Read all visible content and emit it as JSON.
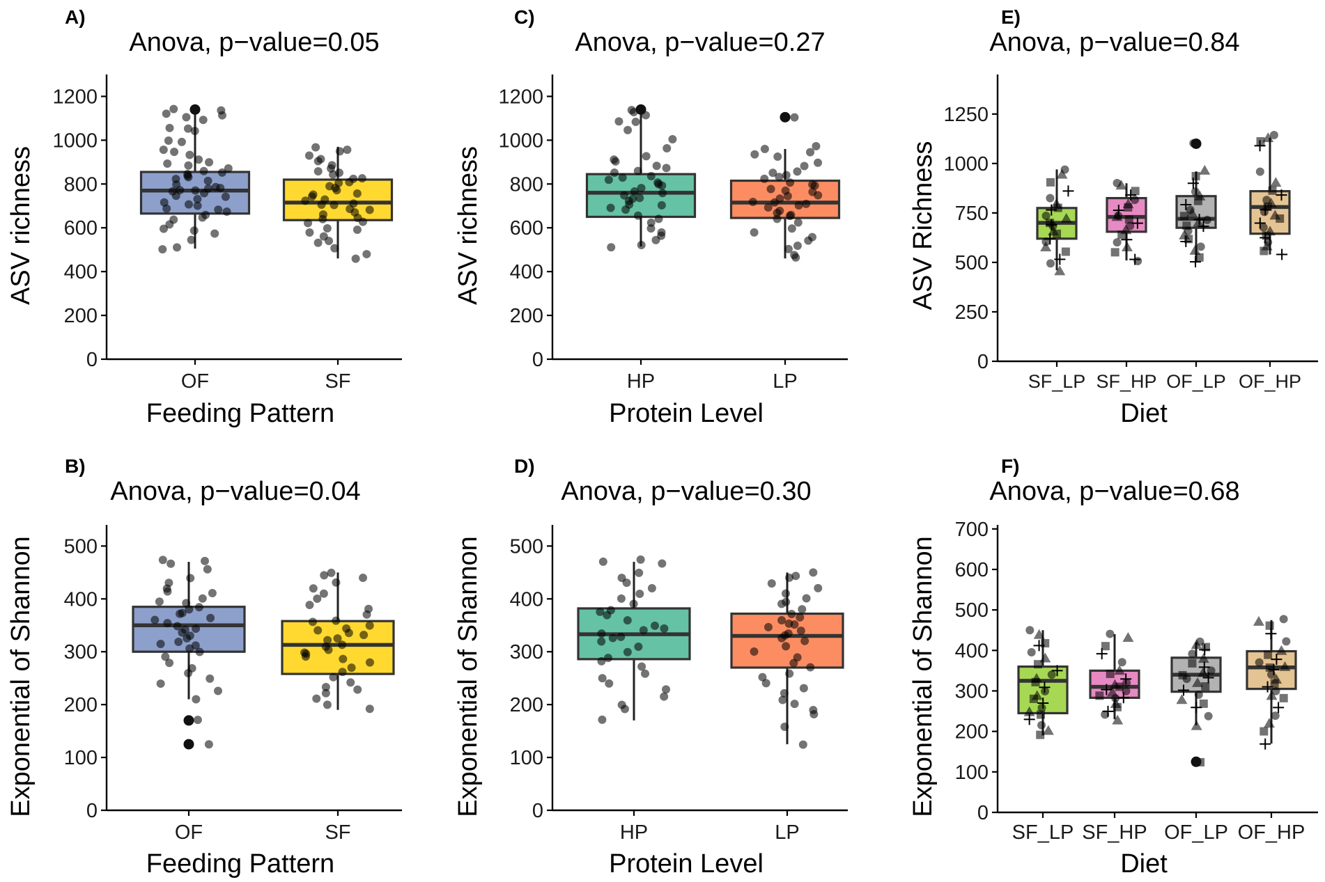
{
  "figure": {
    "panels": [
      {
        "id": "A",
        "letter": "A)"
      },
      {
        "id": "B",
        "letter": "B)"
      },
      {
        "id": "C",
        "letter": "C)"
      },
      {
        "id": "D",
        "letter": "D)"
      },
      {
        "id": "E",
        "letter": "E)"
      },
      {
        "id": "F",
        "letter": "F)"
      }
    ]
  },
  "colors": {
    "OF": "#8DA0CB",
    "SF": "#FFD92F",
    "HP": "#66C2A5",
    "LP": "#FC8D62",
    "SF_LP": "#A6D854",
    "SF_HP": "#E78AC3",
    "OF_LP": "#B3B3B3",
    "OF_HP": "#E5C494"
  },
  "chart_data": [
    {
      "id": "A",
      "type": "boxplot",
      "title": "Anova, p−value=0.05",
      "xlabel": "Feeding Pattern",
      "ylabel": "ASV richness",
      "ylim": [
        0,
        1300
      ],
      "yticks": [
        0,
        200,
        400,
        600,
        800,
        1000,
        1200
      ],
      "categories": [
        "OF",
        "SF"
      ],
      "boxes": [
        {
          "name": "OF",
          "q1": 665,
          "median": 770,
          "q3": 855,
          "whisker_low": 505,
          "whisker_high": 1135,
          "outliers": [
            1140
          ],
          "points": [
            1140,
            1120,
            1110,
            1105,
            1090,
            1060,
            1050,
            1040,
            1000,
            990,
            960,
            950,
            930,
            910,
            900,
            890,
            880,
            870,
            860,
            850,
            845,
            840,
            830,
            820,
            810,
            800,
            790,
            785,
            780,
            775,
            770,
            765,
            760,
            750,
            740,
            730,
            720,
            710,
            700,
            690,
            680,
            670,
            660,
            650,
            640,
            620,
            600,
            590,
            570,
            540,
            510,
            500,
            1140
          ]
        },
        {
          "name": "SF",
          "q1": 635,
          "median": 715,
          "q3": 820,
          "whisker_low": 460,
          "whisker_high": 970,
          "outliers": [],
          "points": [
            970,
            960,
            950,
            930,
            910,
            900,
            890,
            870,
            860,
            850,
            840,
            830,
            820,
            810,
            800,
            790,
            780,
            770,
            760,
            750,
            740,
            730,
            720,
            715,
            710,
            700,
            690,
            680,
            670,
            660,
            650,
            640,
            630,
            620,
            600,
            590,
            580,
            560,
            540,
            530,
            510,
            480,
            460
          ]
        }
      ]
    },
    {
      "id": "B",
      "type": "boxplot",
      "title": "Anova, p−value=0.04",
      "xlabel": "Feeding Pattern",
      "ylabel": "Exponential of Shannon",
      "ylim": [
        0,
        540
      ],
      "yticks": [
        0,
        100,
        200,
        300,
        400,
        500
      ],
      "categories": [
        "OF",
        "SF"
      ],
      "boxes": [
        {
          "name": "OF",
          "q1": 300,
          "median": 350,
          "q3": 385,
          "whisker_low": 210,
          "whisker_high": 470,
          "outliers": [
            170,
            125
          ],
          "points": [
            475,
            470,
            465,
            455,
            440,
            430,
            420,
            415,
            410,
            400,
            395,
            390,
            385,
            380,
            375,
            370,
            365,
            360,
            355,
            350,
            345,
            340,
            335,
            330,
            325,
            320,
            315,
            310,
            305,
            300,
            290,
            280,
            270,
            260,
            250,
            240,
            225,
            210,
            170,
            125
          ]
        },
        {
          "name": "SF",
          "q1": 258,
          "median": 313,
          "q3": 358,
          "whisker_low": 190,
          "whisker_high": 450,
          "outliers": [],
          "points": [
            450,
            445,
            440,
            430,
            420,
            410,
            400,
            390,
            380,
            370,
            360,
            355,
            350,
            345,
            340,
            335,
            330,
            325,
            320,
            315,
            310,
            305,
            300,
            295,
            290,
            285,
            280,
            270,
            260,
            250,
            240,
            235,
            230,
            220,
            210,
            200,
            190
          ]
        }
      ]
    },
    {
      "id": "C",
      "type": "boxplot",
      "title": "Anova, p−value=0.27",
      "xlabel": "Protein Level",
      "ylabel": "ASV richness",
      "ylim": [
        0,
        1300
      ],
      "yticks": [
        0,
        200,
        400,
        600,
        800,
        1000,
        1200
      ],
      "categories": [
        "HP",
        "LP"
      ],
      "boxes": [
        {
          "name": "HP",
          "q1": 650,
          "median": 760,
          "q3": 845,
          "whisker_low": 515,
          "whisker_high": 1140,
          "outliers": [
            1140
          ],
          "points": [
            1140,
            1130,
            1110,
            1090,
            1080,
            1050,
            1000,
            960,
            930,
            910,
            900,
            880,
            870,
            860,
            850,
            840,
            830,
            820,
            810,
            800,
            790,
            780,
            770,
            760,
            750,
            740,
            730,
            720,
            710,
            700,
            690,
            680,
            660,
            640,
            620,
            600,
            580,
            560,
            540,
            520,
            510
          ]
        },
        {
          "name": "LP",
          "q1": 645,
          "median": 715,
          "q3": 815,
          "whisker_low": 460,
          "whisker_high": 960,
          "outliers": [
            1105
          ],
          "points": [
            1105,
            970,
            960,
            950,
            940,
            920,
            900,
            880,
            860,
            850,
            840,
            830,
            820,
            810,
            800,
            790,
            780,
            770,
            760,
            750,
            740,
            730,
            720,
            715,
            710,
            700,
            690,
            680,
            670,
            660,
            650,
            640,
            620,
            600,
            580,
            560,
            540,
            520,
            500,
            480,
            460
          ]
        }
      ]
    },
    {
      "id": "D",
      "type": "boxplot",
      "title": "Anova, p−value=0.30",
      "xlabel": "Protein Level",
      "ylabel": "Exponential of Shannon",
      "ylim": [
        0,
        540
      ],
      "yticks": [
        0,
        100,
        200,
        300,
        400,
        500
      ],
      "categories": [
        "HP",
        "LP"
      ],
      "boxes": [
        {
          "name": "HP",
          "q1": 286,
          "median": 333,
          "q3": 382,
          "whisker_low": 170,
          "whisker_high": 470,
          "outliers": [],
          "points": [
            475,
            470,
            465,
            450,
            440,
            430,
            420,
            410,
            400,
            390,
            380,
            375,
            370,
            360,
            350,
            345,
            340,
            335,
            330,
            325,
            320,
            310,
            300,
            290,
            280,
            270,
            260,
            250,
            240,
            230,
            215,
            200,
            190,
            170
          ]
        },
        {
          "name": "LP",
          "q1": 270,
          "median": 330,
          "q3": 372,
          "whisker_low": 125,
          "whisker_high": 450,
          "outliers": [],
          "points": [
            450,
            445,
            440,
            430,
            420,
            410,
            400,
            395,
            390,
            380,
            370,
            365,
            360,
            355,
            350,
            345,
            340,
            335,
            330,
            325,
            320,
            310,
            300,
            290,
            280,
            270,
            260,
            250,
            240,
            230,
            220,
            210,
            200,
            190,
            180,
            160,
            125
          ]
        }
      ]
    },
    {
      "id": "E",
      "type": "boxplot",
      "title": "Anova, p−value=0.84",
      "xlabel": "Diet",
      "ylabel": "ASV Richness",
      "ylim": [
        0,
        1450
      ],
      "yticks": [
        0,
        250,
        500,
        750,
        1000,
        1250
      ],
      "categories": [
        "SF_LP",
        "SF_HP",
        "OF_LP",
        "OF_HP"
      ],
      "boxes": [
        {
          "name": "SF_LP",
          "q1": 620,
          "median": 700,
          "q3": 775,
          "whisker_low": 460,
          "whisker_high": 970,
          "outliers": [],
          "points": [
            970,
            940,
            910,
            860,
            830,
            800,
            780,
            760,
            740,
            720,
            700,
            690,
            680,
            660,
            640,
            620,
            600,
            580,
            550,
            520,
            490,
            460
          ]
        },
        {
          "name": "SF_HP",
          "q1": 655,
          "median": 730,
          "q3": 825,
          "whisker_low": 510,
          "whisker_high": 900,
          "outliers": [],
          "points": [
            900,
            890,
            860,
            840,
            820,
            800,
            780,
            760,
            740,
            730,
            720,
            700,
            680,
            660,
            640,
            620,
            600,
            580,
            550,
            520,
            510
          ]
        },
        {
          "name": "OF_LP",
          "q1": 675,
          "median": 720,
          "q3": 835,
          "whisker_low": 505,
          "whisker_high": 960,
          "outliers": [
            1100
          ],
          "points": [
            1100,
            960,
            940,
            900,
            860,
            830,
            810,
            790,
            770,
            750,
            730,
            720,
            710,
            700,
            690,
            680,
            660,
            640,
            620,
            600,
            580,
            560,
            530,
            505
          ]
        },
        {
          "name": "OF_HP",
          "q1": 645,
          "median": 780,
          "q3": 860,
          "whisker_low": 540,
          "whisker_high": 1130,
          "outliers": [],
          "points": [
            1140,
            1130,
            1110,
            1090,
            960,
            900,
            860,
            840,
            820,
            800,
            780,
            770,
            760,
            740,
            720,
            700,
            680,
            660,
            640,
            620,
            600,
            580,
            560,
            540
          ]
        }
      ]
    },
    {
      "id": "F",
      "type": "boxplot",
      "title": "Anova, p−value=0.68",
      "xlabel": "Diet",
      "ylabel": "Exponential of Shannon",
      "ylim": [
        0,
        710
      ],
      "yticks": [
        0,
        100,
        200,
        300,
        400,
        500,
        600,
        700
      ],
      "categories": [
        "SF_LP",
        "SF_HP",
        "OF_LP",
        "OF_HP"
      ],
      "boxes": [
        {
          "name": "SF_LP",
          "q1": 245,
          "median": 325,
          "q3": 360,
          "whisker_low": 190,
          "whisker_high": 450,
          "outliers": [],
          "points": [
            450,
            440,
            420,
            410,
            395,
            380,
            365,
            350,
            340,
            330,
            320,
            310,
            300,
            290,
            280,
            270,
            260,
            250,
            240,
            230,
            215,
            200,
            190
          ]
        },
        {
          "name": "SF_HP",
          "q1": 283,
          "median": 310,
          "q3": 350,
          "whisker_low": 230,
          "whisker_high": 440,
          "outliers": [],
          "points": [
            440,
            430,
            410,
            390,
            370,
            350,
            340,
            330,
            320,
            315,
            310,
            305,
            300,
            295,
            290,
            285,
            280,
            270,
            260,
            250,
            240,
            230
          ]
        },
        {
          "name": "OF_LP",
          "q1": 298,
          "median": 340,
          "q3": 382,
          "whisker_low": 215,
          "whisker_high": 420,
          "outliers": [
            125
          ],
          "points": [
            420,
            415,
            410,
            400,
            390,
            380,
            370,
            360,
            350,
            345,
            340,
            335,
            330,
            320,
            310,
            300,
            290,
            280,
            270,
            260,
            240,
            215,
            125
          ]
        },
        {
          "name": "OF_HP",
          "q1": 305,
          "median": 358,
          "q3": 398,
          "whisker_low": 170,
          "whisker_high": 475,
          "outliers": [],
          "points": [
            475,
            470,
            460,
            440,
            420,
            400,
            390,
            380,
            370,
            360,
            355,
            350,
            340,
            330,
            320,
            310,
            300,
            290,
            280,
            260,
            240,
            220,
            200,
            170
          ]
        }
      ]
    }
  ]
}
